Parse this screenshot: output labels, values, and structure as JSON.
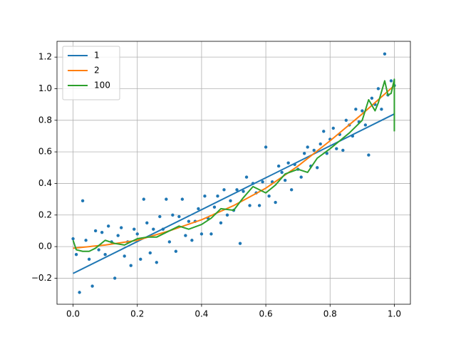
{
  "chart_data": {
    "type": "line",
    "xlim": [
      -0.05,
      1.05
    ],
    "ylim": [
      -0.365,
      1.3
    ],
    "xticks": [
      {
        "value": 0,
        "label": "0.0"
      },
      {
        "value": 0.2,
        "label": "0.2"
      },
      {
        "value": 0.4,
        "label": "0.4"
      },
      {
        "value": 0.6,
        "label": "0.6"
      },
      {
        "value": 0.8,
        "label": "0.8"
      },
      {
        "value": 1,
        "label": "1.0"
      }
    ],
    "yticks": [
      {
        "value": -0.2,
        "label": "−0.2"
      },
      {
        "value": 0,
        "label": "0.0"
      },
      {
        "value": 0.2,
        "label": "0.2"
      },
      {
        "value": 0.4,
        "label": "0.4"
      },
      {
        "value": 0.6,
        "label": "0.6"
      },
      {
        "value": 0.8,
        "label": "0.8"
      },
      {
        "value": 1,
        "label": "1.0"
      },
      {
        "value": 1.2,
        "label": "1.2"
      }
    ],
    "grid": true,
    "legend": "upper left",
    "points": {
      "type": "scatter",
      "color": "#1f77b4",
      "x": [
        0,
        0.01,
        0.02,
        0.03,
        0.04,
        0.05,
        0.06,
        0.07,
        0.08,
        0.09,
        0.1,
        0.11,
        0.12,
        0.13,
        0.14,
        0.15,
        0.16,
        0.17,
        0.18,
        0.19,
        0.2,
        0.21,
        0.22,
        0.23,
        0.24,
        0.25,
        0.26,
        0.27,
        0.28,
        0.29,
        0.3,
        0.31,
        0.32,
        0.33,
        0.34,
        0.35,
        0.36,
        0.37,
        0.38,
        0.39,
        0.4,
        0.41,
        0.42,
        0.43,
        0.44,
        0.45,
        0.46,
        0.47,
        0.48,
        0.49,
        0.5,
        0.51,
        0.52,
        0.53,
        0.54,
        0.55,
        0.56,
        0.57,
        0.58,
        0.59,
        0.6,
        0.61,
        0.62,
        0.63,
        0.64,
        0.65,
        0.66,
        0.67,
        0.68,
        0.69,
        0.7,
        0.71,
        0.72,
        0.73,
        0.74,
        0.75,
        0.76,
        0.77,
        0.78,
        0.79,
        0.8,
        0.81,
        0.82,
        0.83,
        0.84,
        0.85,
        0.86,
        0.87,
        0.88,
        0.89,
        0.9,
        0.91,
        0.92,
        0.93,
        0.94,
        0.95,
        0.96,
        0.97,
        0.98,
        0.99,
        1.0
      ],
      "values": [
        0.05,
        -0.05,
        -0.29,
        0.29,
        0.04,
        -0.08,
        -0.25,
        0.1,
        -0.02,
        0.09,
        -0.05,
        0.13,
        0.03,
        -0.2,
        0.07,
        0.12,
        -0.06,
        0.03,
        -0.12,
        0.11,
        0.08,
        -0.08,
        0.3,
        0.15,
        -0.04,
        0.11,
        -0.1,
        0.19,
        0.11,
        0.3,
        0.03,
        0.2,
        -0.03,
        0.19,
        0.3,
        0.07,
        0.16,
        0.04,
        0.16,
        0.24,
        0.08,
        0.32,
        0.18,
        0.08,
        0.25,
        0.32,
        0.15,
        0.36,
        0.2,
        0.29,
        0.23,
        0.36,
        0.02,
        0.35,
        0.44,
        0.26,
        0.4,
        0.34,
        0.26,
        0.41,
        0.63,
        0.32,
        0.41,
        0.28,
        0.51,
        0.47,
        0.42,
        0.53,
        0.36,
        0.52,
        0.49,
        0.44,
        0.59,
        0.63,
        0.51,
        0.61,
        0.5,
        0.65,
        0.73,
        0.59,
        0.68,
        0.75,
        0.62,
        0.71,
        0.61,
        0.8,
        0.77,
        0.7,
        0.87,
        0.79,
        0.86,
        0.77,
        0.58,
        0.94,
        0.9,
        1.0,
        0.87,
        1.22,
        0.96,
        1.05,
        1.02
      ]
    },
    "series": [
      {
        "name": "1",
        "color": "#1f77b4",
        "x": [
          0,
          1
        ],
        "values": [
          -0.17,
          0.84
        ]
      },
      {
        "name": "2",
        "color": "#ff7f0e",
        "x": [
          0,
          0.1,
          0.2,
          0.3,
          0.4,
          0.5,
          0.6,
          0.7,
          0.8,
          0.9,
          1.0
        ],
        "values": [
          -0.01,
          0.01,
          0.04,
          0.1,
          0.17,
          0.26,
          0.37,
          0.51,
          0.67,
          0.84,
          1.02
        ]
      },
      {
        "name": "100",
        "color": "#2ca02c",
        "x": [
          0,
          0.01,
          0.03,
          0.05,
          0.07,
          0.1,
          0.13,
          0.16,
          0.2,
          0.23,
          0.26,
          0.3,
          0.33,
          0.36,
          0.4,
          0.43,
          0.46,
          0.5,
          0.53,
          0.56,
          0.6,
          0.63,
          0.66,
          0.7,
          0.73,
          0.76,
          0.8,
          0.83,
          0.86,
          0.9,
          0.92,
          0.94,
          0.95,
          0.97,
          0.98,
          0.99,
          1.0,
          1.0
        ],
        "values": [
          0.04,
          -0.02,
          -0.03,
          -0.03,
          -0.01,
          0.04,
          0.02,
          0.01,
          0.05,
          0.06,
          0.06,
          0.1,
          0.13,
          0.11,
          0.14,
          0.18,
          0.24,
          0.23,
          0.31,
          0.38,
          0.34,
          0.39,
          0.46,
          0.49,
          0.47,
          0.56,
          0.62,
          0.67,
          0.72,
          0.8,
          0.93,
          0.86,
          0.91,
          1.05,
          0.96,
          0.97,
          1.06,
          0.73
        ]
      }
    ]
  }
}
